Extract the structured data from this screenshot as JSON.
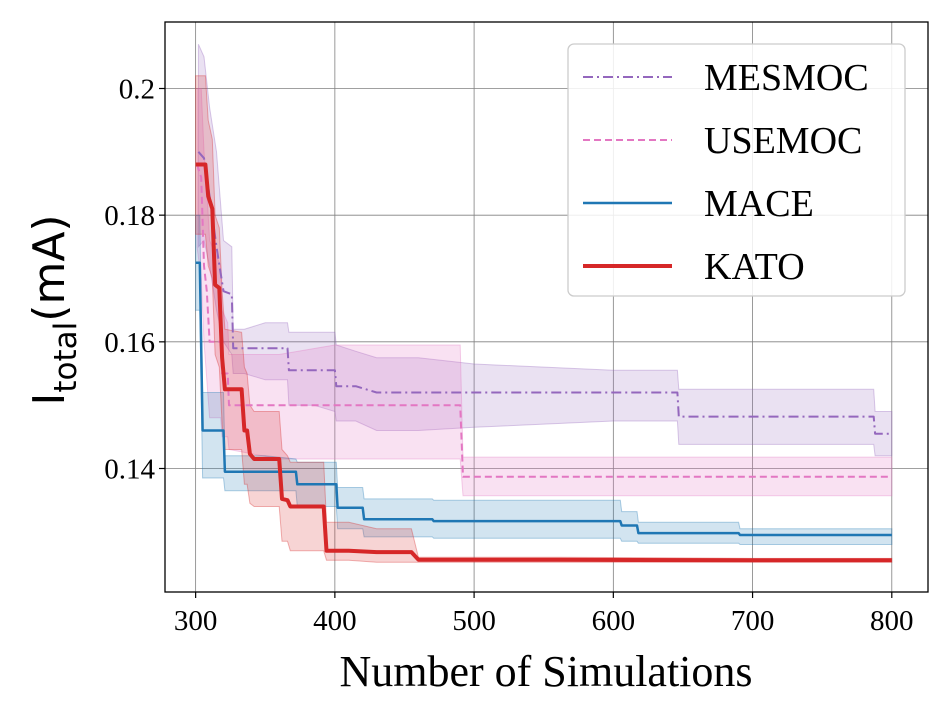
{
  "chart_data": {
    "type": "line",
    "title": "",
    "xlabel": "Number of Simulations",
    "ylabel": "I",
    "ylabel_subscript": "total",
    "ylabel_unit": "(mA)",
    "xlim": [
      278,
      826
    ],
    "ylim": [
      0.1205,
      0.2105
    ],
    "xticks": [
      300,
      400,
      500,
      600,
      700,
      800
    ],
    "yticks": [
      0.14,
      0.16,
      0.18,
      0.2
    ],
    "ytick_labels": [
      "0.14",
      "0.16",
      "0.18",
      "0.2"
    ],
    "grid": true,
    "legend_position": "top-right",
    "series": [
      {
        "name": "MESMOC",
        "color": "#9467bd",
        "style": "dashdot",
        "width": 2,
        "band_opacity": 0.2,
        "points": [
          [
            302,
            0.19
          ],
          [
            306,
            0.189
          ],
          [
            310,
            0.183
          ],
          [
            315,
            0.175
          ],
          [
            320,
            0.168
          ],
          [
            326,
            0.1675
          ],
          [
            327,
            0.159
          ],
          [
            335,
            0.159
          ],
          [
            350,
            0.159
          ],
          [
            366,
            0.159
          ],
          [
            367,
            0.1555
          ],
          [
            385,
            0.1555
          ],
          [
            400,
            0.1555
          ],
          [
            401,
            0.153
          ],
          [
            415,
            0.153
          ],
          [
            430,
            0.152
          ],
          [
            460,
            0.152
          ],
          [
            500,
            0.152
          ],
          [
            600,
            0.152
          ],
          [
            646,
            0.152
          ],
          [
            647,
            0.1482
          ],
          [
            700,
            0.1482
          ],
          [
            787,
            0.1482
          ],
          [
            788,
            0.1455
          ],
          [
            800,
            0.1455
          ]
        ],
        "upper": [
          [
            302,
            0.207
          ],
          [
            306,
            0.205
          ],
          [
            310,
            0.197
          ],
          [
            315,
            0.19
          ],
          [
            320,
            0.176
          ],
          [
            326,
            0.175
          ],
          [
            327,
            0.162
          ],
          [
            335,
            0.162
          ],
          [
            350,
            0.163
          ],
          [
            366,
            0.163
          ],
          [
            367,
            0.1615
          ],
          [
            385,
            0.1615
          ],
          [
            400,
            0.1615
          ],
          [
            401,
            0.1595
          ],
          [
            415,
            0.1585
          ],
          [
            430,
            0.1575
          ],
          [
            460,
            0.1575
          ],
          [
            500,
            0.1565
          ],
          [
            600,
            0.1555
          ],
          [
            646,
            0.1555
          ],
          [
            647,
            0.1525
          ],
          [
            700,
            0.1525
          ],
          [
            787,
            0.1525
          ],
          [
            788,
            0.149
          ],
          [
            800,
            0.149
          ]
        ],
        "lower": [
          [
            302,
            0.175
          ],
          [
            306,
            0.176
          ],
          [
            310,
            0.172
          ],
          [
            315,
            0.165
          ],
          [
            320,
            0.16
          ],
          [
            326,
            0.158
          ],
          [
            327,
            0.155
          ],
          [
            335,
            0.155
          ],
          [
            350,
            0.154
          ],
          [
            366,
            0.154
          ],
          [
            367,
            0.15
          ],
          [
            385,
            0.15
          ],
          [
            400,
            0.149
          ],
          [
            401,
            0.1475
          ],
          [
            415,
            0.1475
          ],
          [
            430,
            0.146
          ],
          [
            460,
            0.146
          ],
          [
            500,
            0.1465
          ],
          [
            600,
            0.1475
          ],
          [
            646,
            0.1475
          ],
          [
            647,
            0.1438
          ],
          [
            700,
            0.1438
          ],
          [
            787,
            0.1438
          ],
          [
            788,
            0.142
          ],
          [
            800,
            0.142
          ]
        ]
      },
      {
        "name": "USEMOC",
        "color": "#e377c2",
        "style": "dashed",
        "width": 2,
        "band_opacity": 0.22,
        "points": [
          [
            301,
            0.188
          ],
          [
            304,
            0.186
          ],
          [
            306,
            0.172
          ],
          [
            308,
            0.168
          ],
          [
            310,
            0.16
          ],
          [
            318,
            0.16
          ],
          [
            319,
            0.155
          ],
          [
            323,
            0.155
          ],
          [
            324,
            0.15
          ],
          [
            360,
            0.15
          ],
          [
            400,
            0.15
          ],
          [
            450,
            0.15
          ],
          [
            490,
            0.15
          ],
          [
            492,
            0.1387
          ],
          [
            550,
            0.1387
          ],
          [
            650,
            0.1387
          ],
          [
            750,
            0.1387
          ],
          [
            800,
            0.1387
          ]
        ],
        "upper": [
          [
            301,
            0.2
          ],
          [
            304,
            0.2
          ],
          [
            306,
            0.19
          ],
          [
            308,
            0.184
          ],
          [
            310,
            0.176
          ],
          [
            318,
            0.172
          ],
          [
            319,
            0.165
          ],
          [
            323,
            0.163
          ],
          [
            324,
            0.158
          ],
          [
            360,
            0.158
          ],
          [
            400,
            0.1595
          ],
          [
            450,
            0.1595
          ],
          [
            490,
            0.1595
          ],
          [
            492,
            0.1418
          ],
          [
            550,
            0.1418
          ],
          [
            650,
            0.1418
          ],
          [
            750,
            0.1418
          ],
          [
            800,
            0.1418
          ]
        ],
        "lower": [
          [
            301,
            0.175
          ],
          [
            304,
            0.17
          ],
          [
            306,
            0.16
          ],
          [
            308,
            0.154
          ],
          [
            310,
            0.148
          ],
          [
            318,
            0.148
          ],
          [
            319,
            0.145
          ],
          [
            323,
            0.145
          ],
          [
            324,
            0.143
          ],
          [
            360,
            0.1415
          ],
          [
            400,
            0.1415
          ],
          [
            450,
            0.1415
          ],
          [
            490,
            0.1415
          ],
          [
            492,
            0.1357
          ],
          [
            550,
            0.1357
          ],
          [
            650,
            0.1357
          ],
          [
            750,
            0.1357
          ],
          [
            800,
            0.1357
          ]
        ]
      },
      {
        "name": "MACE",
        "color": "#1f77b4",
        "style": "solid",
        "width": 2.5,
        "band_opacity": 0.2,
        "points": [
          [
            300,
            0.1725
          ],
          [
            303,
            0.1725
          ],
          [
            305,
            0.146
          ],
          [
            320,
            0.146
          ],
          [
            321,
            0.1395
          ],
          [
            350,
            0.1395
          ],
          [
            372,
            0.1395
          ],
          [
            373,
            0.1375
          ],
          [
            401,
            0.1375
          ],
          [
            402,
            0.1338
          ],
          [
            420,
            0.1338
          ],
          [
            421,
            0.132
          ],
          [
            470,
            0.132
          ],
          [
            471,
            0.1317
          ],
          [
            560,
            0.1317
          ],
          [
            605,
            0.1317
          ],
          [
            606,
            0.131
          ],
          [
            617,
            0.131
          ],
          [
            618,
            0.1298
          ],
          [
            690,
            0.1298
          ],
          [
            691,
            0.1295
          ],
          [
            800,
            0.1295
          ]
        ],
        "upper": [
          [
            300,
            0.18
          ],
          [
            303,
            0.18
          ],
          [
            305,
            0.152
          ],
          [
            320,
            0.152
          ],
          [
            321,
            0.142
          ],
          [
            350,
            0.142
          ],
          [
            372,
            0.1415
          ],
          [
            373,
            0.141
          ],
          [
            401,
            0.141
          ],
          [
            402,
            0.137
          ],
          [
            420,
            0.137
          ],
          [
            421,
            0.1352
          ],
          [
            470,
            0.1352
          ],
          [
            471,
            0.135
          ],
          [
            560,
            0.135
          ],
          [
            605,
            0.135
          ],
          [
            606,
            0.1332
          ],
          [
            617,
            0.1332
          ],
          [
            618,
            0.1315
          ],
          [
            690,
            0.1315
          ],
          [
            691,
            0.1305
          ],
          [
            800,
            0.1305
          ]
        ],
        "lower": [
          [
            300,
            0.165
          ],
          [
            303,
            0.165
          ],
          [
            305,
            0.1385
          ],
          [
            320,
            0.1385
          ],
          [
            321,
            0.1365
          ],
          [
            350,
            0.1365
          ],
          [
            372,
            0.1365
          ],
          [
            373,
            0.134
          ],
          [
            401,
            0.134
          ],
          [
            402,
            0.1305
          ],
          [
            420,
            0.1305
          ],
          [
            421,
            0.1292
          ],
          [
            470,
            0.1292
          ],
          [
            471,
            0.129
          ],
          [
            560,
            0.129
          ],
          [
            605,
            0.129
          ],
          [
            606,
            0.1285
          ],
          [
            617,
            0.1285
          ],
          [
            618,
            0.1282
          ],
          [
            690,
            0.1282
          ],
          [
            691,
            0.128
          ],
          [
            800,
            0.128
          ]
        ]
      },
      {
        "name": "KATO",
        "color": "#d62728",
        "style": "solid",
        "width": 4,
        "band_opacity": 0.2,
        "points": [
          [
            300,
            0.188
          ],
          [
            307,
            0.188
          ],
          [
            309,
            0.183
          ],
          [
            312,
            0.181
          ],
          [
            314,
            0.169
          ],
          [
            317,
            0.1685
          ],
          [
            319,
            0.1575
          ],
          [
            321,
            0.1525
          ],
          [
            333,
            0.1525
          ],
          [
            335,
            0.146
          ],
          [
            337,
            0.146
          ],
          [
            339,
            0.1423
          ],
          [
            342,
            0.1415
          ],
          [
            360,
            0.1415
          ],
          [
            362,
            0.1352
          ],
          [
            366,
            0.135
          ],
          [
            368,
            0.134
          ],
          [
            392,
            0.134
          ],
          [
            394,
            0.127
          ],
          [
            410,
            0.127
          ],
          [
            430,
            0.1268
          ],
          [
            455,
            0.1268
          ],
          [
            460,
            0.1256
          ],
          [
            560,
            0.1256
          ],
          [
            700,
            0.1255
          ],
          [
            800,
            0.1255
          ]
        ],
        "upper": [
          [
            300,
            0.202
          ],
          [
            307,
            0.202
          ],
          [
            309,
            0.195
          ],
          [
            312,
            0.192
          ],
          [
            314,
            0.18
          ],
          [
            317,
            0.178
          ],
          [
            319,
            0.168
          ],
          [
            321,
            0.162
          ],
          [
            333,
            0.1615
          ],
          [
            335,
            0.156
          ],
          [
            337,
            0.155
          ],
          [
            339,
            0.15
          ],
          [
            342,
            0.149
          ],
          [
            360,
            0.149
          ],
          [
            362,
            0.143
          ],
          [
            366,
            0.142
          ],
          [
            368,
            0.141
          ],
          [
            392,
            0.141
          ],
          [
            394,
            0.1315
          ],
          [
            410,
            0.1315
          ],
          [
            430,
            0.1305
          ],
          [
            455,
            0.1305
          ],
          [
            460,
            0.126
          ],
          [
            560,
            0.126
          ],
          [
            700,
            0.1258
          ],
          [
            800,
            0.1258
          ]
        ],
        "lower": [
          [
            300,
            0.177
          ],
          [
            307,
            0.177
          ],
          [
            309,
            0.172
          ],
          [
            312,
            0.17
          ],
          [
            314,
            0.158
          ],
          [
            317,
            0.156
          ],
          [
            319,
            0.147
          ],
          [
            321,
            0.143
          ],
          [
            333,
            0.143
          ],
          [
            335,
            0.1375
          ],
          [
            337,
            0.1375
          ],
          [
            339,
            0.1345
          ],
          [
            342,
            0.134
          ],
          [
            360,
            0.134
          ],
          [
            362,
            0.1285
          ],
          [
            366,
            0.1285
          ],
          [
            368,
            0.127
          ],
          [
            392,
            0.127
          ],
          [
            394,
            0.1255
          ],
          [
            410,
            0.1255
          ],
          [
            430,
            0.1252
          ],
          [
            455,
            0.1252
          ],
          [
            460,
            0.1252
          ],
          [
            560,
            0.1252
          ],
          [
            700,
            0.1252
          ],
          [
            800,
            0.1252
          ]
        ]
      }
    ]
  }
}
